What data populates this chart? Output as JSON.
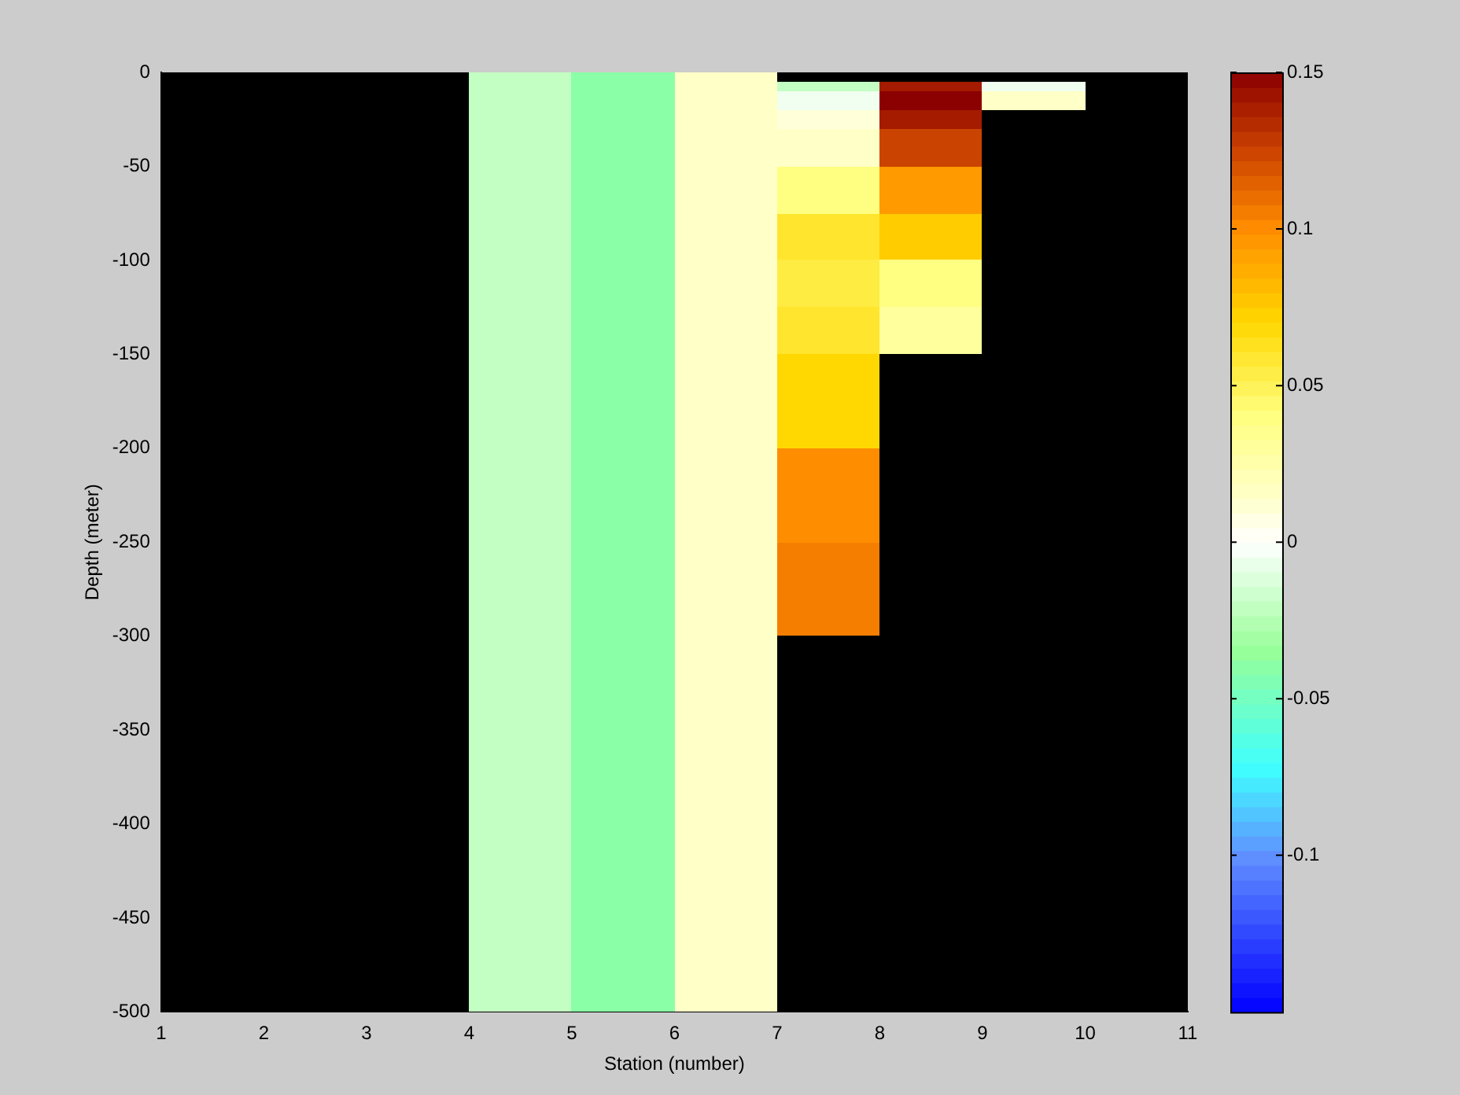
{
  "chart_data": {
    "type": "heatmap",
    "xlabel": "Station (number)",
    "ylabel": "Depth (meter)",
    "x": [
      1.5,
      2.5,
      3.5,
      4.5,
      5.5,
      6.5,
      7.5,
      8.5,
      9.5,
      10.5
    ],
    "y": [
      -2.5,
      -7.5,
      -12.5,
      -17.5,
      -22.5,
      -27.5,
      -32.5,
      -37.5,
      -42.5,
      -47.5,
      -52.5,
      -57.5,
      -62.5,
      -67.5,
      -72.5,
      -77.5,
      -82.5,
      -87.5,
      -92.5,
      -97.5,
      -102.5,
      -107.5,
      -112.5,
      -117.5,
      -122.5,
      -127.5,
      -132.5,
      -137.5,
      -142.5,
      -147.5,
      -152.5,
      -157.5,
      -162.5,
      -167.5,
      -172.5,
      -177.5,
      -182.5,
      -187.5,
      -192.5,
      -197.5,
      -202.5,
      -207.5,
      -212.5,
      -217.5,
      -222.5,
      -227.5,
      -232.5,
      -237.5,
      -242.5,
      -247.5,
      -252.5,
      -257.5,
      -262.5,
      -267.5,
      -272.5,
      -277.5,
      -282.5,
      -287.5,
      -292.5,
      -297.5,
      -302.5,
      -307.5,
      -312.5,
      -317.5,
      -322.5,
      -327.5,
      -332.5,
      -337.5,
      -342.5,
      -347.5,
      -352.5,
      -357.5,
      -362.5,
      -367.5,
      -372.5,
      -377.5,
      -382.5,
      -387.5,
      -392.5,
      -397.5,
      -402.5,
      -407.5,
      -412.5,
      -417.5,
      -422.5,
      -427.5,
      -432.5,
      -437.5,
      -442.5,
      -447.5,
      -452.5,
      -457.5,
      -462.5,
      -467.5,
      -472.5,
      -477.5,
      -482.5,
      -487.5,
      -492.5,
      -497.5
    ],
    "cells": [
      [
        null,
        null,
        null,
        -0.02,
        -0.04,
        0.015,
        null,
        null,
        null,
        null
      ],
      [
        null,
        null,
        null,
        -0.02,
        -0.04,
        0.015,
        -0.02,
        0.14,
        -0.005,
        null
      ],
      [
        null,
        null,
        null,
        -0.02,
        -0.04,
        0.015,
        -0.005,
        0.15,
        0.015,
        null
      ],
      [
        null,
        null,
        null,
        -0.02,
        -0.04,
        0.015,
        -0.005,
        0.15,
        0.015,
        null
      ],
      [
        null,
        null,
        null,
        -0.02,
        -0.04,
        0.015,
        0.01,
        0.14,
        null,
        null
      ],
      [
        null,
        null,
        null,
        -0.02,
        -0.04,
        0.015,
        0.01,
        0.14,
        null,
        null
      ],
      [
        null,
        null,
        null,
        -0.02,
        -0.04,
        0.015,
        0.015,
        0.125,
        null,
        null
      ],
      [
        null,
        null,
        null,
        -0.02,
        -0.04,
        0.015,
        0.015,
        0.125,
        null,
        null
      ],
      [
        null,
        null,
        null,
        -0.02,
        -0.04,
        0.015,
        0.015,
        0.125,
        null,
        null
      ],
      [
        null,
        null,
        null,
        -0.02,
        -0.04,
        0.015,
        0.015,
        0.125,
        null,
        null
      ],
      [
        null,
        null,
        null,
        -0.02,
        -0.04,
        0.015,
        0.04,
        0.095,
        null,
        null
      ],
      [
        null,
        null,
        null,
        -0.02,
        -0.04,
        0.015,
        0.04,
        0.095,
        null,
        null
      ],
      [
        null,
        null,
        null,
        -0.02,
        -0.04,
        0.015,
        0.04,
        0.095,
        null,
        null
      ],
      [
        null,
        null,
        null,
        -0.02,
        -0.04,
        0.015,
        0.04,
        0.095,
        null,
        null
      ],
      [
        null,
        null,
        null,
        -0.02,
        -0.04,
        0.015,
        0.04,
        0.095,
        null,
        null
      ],
      [
        null,
        null,
        null,
        -0.02,
        -0.04,
        0.015,
        0.06,
        0.075,
        null,
        null
      ],
      [
        null,
        null,
        null,
        -0.02,
        -0.04,
        0.015,
        0.06,
        0.075,
        null,
        null
      ],
      [
        null,
        null,
        null,
        -0.02,
        -0.04,
        0.015,
        0.06,
        0.075,
        null,
        null
      ],
      [
        null,
        null,
        null,
        -0.02,
        -0.04,
        0.015,
        0.06,
        0.075,
        null,
        null
      ],
      [
        null,
        null,
        null,
        -0.02,
        -0.04,
        0.015,
        0.06,
        0.075,
        null,
        null
      ],
      [
        null,
        null,
        null,
        -0.02,
        -0.04,
        0.015,
        0.055,
        0.04,
        null,
        null
      ],
      [
        null,
        null,
        null,
        -0.02,
        -0.04,
        0.015,
        0.055,
        0.04,
        null,
        null
      ],
      [
        null,
        null,
        null,
        -0.02,
        -0.04,
        0.015,
        0.055,
        0.04,
        null,
        null
      ],
      [
        null,
        null,
        null,
        -0.02,
        -0.04,
        0.015,
        0.055,
        0.04,
        null,
        null
      ],
      [
        null,
        null,
        null,
        -0.02,
        -0.04,
        0.015,
        0.055,
        0.04,
        null,
        null
      ],
      [
        null,
        null,
        null,
        -0.02,
        -0.04,
        0.015,
        0.06,
        0.03,
        null,
        null
      ],
      [
        null,
        null,
        null,
        -0.02,
        -0.04,
        0.015,
        0.06,
        0.03,
        null,
        null
      ],
      [
        null,
        null,
        null,
        -0.02,
        -0.04,
        0.015,
        0.06,
        0.03,
        null,
        null
      ],
      [
        null,
        null,
        null,
        -0.02,
        -0.04,
        0.015,
        0.06,
        0.03,
        null,
        null
      ],
      [
        null,
        null,
        null,
        -0.02,
        -0.04,
        0.015,
        0.06,
        0.03,
        null,
        null
      ],
      [
        null,
        null,
        null,
        -0.02,
        -0.04,
        0.015,
        0.07,
        null,
        null,
        null
      ],
      [
        null,
        null,
        null,
        -0.02,
        -0.04,
        0.015,
        0.07,
        null,
        null,
        null
      ],
      [
        null,
        null,
        null,
        -0.02,
        -0.04,
        0.015,
        0.07,
        null,
        null,
        null
      ],
      [
        null,
        null,
        null,
        -0.02,
        -0.04,
        0.015,
        0.07,
        null,
        null,
        null
      ],
      [
        null,
        null,
        null,
        -0.02,
        -0.04,
        0.015,
        0.07,
        null,
        null,
        null
      ],
      [
        null,
        null,
        null,
        -0.02,
        -0.04,
        0.015,
        0.07,
        null,
        null,
        null
      ],
      [
        null,
        null,
        null,
        -0.02,
        -0.04,
        0.015,
        0.07,
        null,
        null,
        null
      ],
      [
        null,
        null,
        null,
        -0.02,
        -0.04,
        0.015,
        0.07,
        null,
        null,
        null
      ],
      [
        null,
        null,
        null,
        -0.02,
        -0.04,
        0.015,
        0.07,
        null,
        null,
        null
      ],
      [
        null,
        null,
        null,
        -0.02,
        -0.04,
        0.015,
        0.07,
        null,
        null,
        null
      ],
      [
        null,
        null,
        null,
        -0.02,
        -0.04,
        0.015,
        0.1,
        null,
        null,
        null
      ],
      [
        null,
        null,
        null,
        -0.02,
        -0.04,
        0.015,
        0.1,
        null,
        null,
        null
      ],
      [
        null,
        null,
        null,
        -0.02,
        -0.04,
        0.015,
        0.1,
        null,
        null,
        null
      ],
      [
        null,
        null,
        null,
        -0.02,
        -0.04,
        0.015,
        0.1,
        null,
        null,
        null
      ],
      [
        null,
        null,
        null,
        -0.02,
        -0.04,
        0.015,
        0.1,
        null,
        null,
        null
      ],
      [
        null,
        null,
        null,
        -0.02,
        -0.04,
        0.015,
        0.1,
        null,
        null,
        null
      ],
      [
        null,
        null,
        null,
        -0.02,
        -0.04,
        0.015,
        0.1,
        null,
        null,
        null
      ],
      [
        null,
        null,
        null,
        -0.02,
        -0.04,
        0.015,
        0.1,
        null,
        null,
        null
      ],
      [
        null,
        null,
        null,
        -0.02,
        -0.04,
        0.015,
        0.1,
        null,
        null,
        null
      ],
      [
        null,
        null,
        null,
        -0.02,
        -0.04,
        0.015,
        0.1,
        null,
        null,
        null
      ],
      [
        null,
        null,
        null,
        -0.02,
        -0.04,
        0.015,
        0.105,
        null,
        null,
        null
      ],
      [
        null,
        null,
        null,
        -0.02,
        -0.04,
        0.015,
        0.105,
        null,
        null,
        null
      ],
      [
        null,
        null,
        null,
        -0.02,
        -0.04,
        0.015,
        0.105,
        null,
        null,
        null
      ],
      [
        null,
        null,
        null,
        -0.02,
        -0.04,
        0.015,
        0.105,
        null,
        null,
        null
      ],
      [
        null,
        null,
        null,
        -0.02,
        -0.04,
        0.015,
        0.105,
        null,
        null,
        null
      ],
      [
        null,
        null,
        null,
        -0.02,
        -0.04,
        0.015,
        0.105,
        null,
        null,
        null
      ],
      [
        null,
        null,
        null,
        -0.02,
        -0.04,
        0.015,
        0.105,
        null,
        null,
        null
      ],
      [
        null,
        null,
        null,
        -0.02,
        -0.04,
        0.015,
        0.105,
        null,
        null,
        null
      ],
      [
        null,
        null,
        null,
        -0.02,
        -0.04,
        0.015,
        0.105,
        null,
        null,
        null
      ],
      [
        null,
        null,
        null,
        -0.02,
        -0.04,
        0.015,
        0.105,
        null,
        null,
        null
      ],
      [
        null,
        null,
        null,
        -0.02,
        -0.04,
        0.015,
        null,
        null,
        null,
        null
      ],
      [
        null,
        null,
        null,
        -0.02,
        -0.04,
        0.015,
        null,
        null,
        null,
        null
      ],
      [
        null,
        null,
        null,
        -0.02,
        -0.04,
        0.015,
        null,
        null,
        null,
        null
      ],
      [
        null,
        null,
        null,
        -0.02,
        -0.04,
        0.015,
        null,
        null,
        null,
        null
      ],
      [
        null,
        null,
        null,
        -0.02,
        -0.04,
        0.015,
        null,
        null,
        null,
        null
      ],
      [
        null,
        null,
        null,
        -0.02,
        -0.04,
        0.015,
        null,
        null,
        null,
        null
      ],
      [
        null,
        null,
        null,
        -0.02,
        -0.04,
        0.015,
        null,
        null,
        null,
        null
      ],
      [
        null,
        null,
        null,
        -0.02,
        -0.04,
        0.015,
        null,
        null,
        null,
        null
      ],
      [
        null,
        null,
        null,
        -0.02,
        -0.04,
        0.015,
        null,
        null,
        null,
        null
      ],
      [
        null,
        null,
        null,
        -0.02,
        -0.04,
        0.015,
        null,
        null,
        null,
        null
      ],
      [
        null,
        null,
        null,
        -0.02,
        -0.04,
        0.015,
        null,
        null,
        null,
        null
      ],
      [
        null,
        null,
        null,
        -0.02,
        -0.04,
        0.015,
        null,
        null,
        null,
        null
      ],
      [
        null,
        null,
        null,
        -0.02,
        -0.04,
        0.015,
        null,
        null,
        null,
        null
      ],
      [
        null,
        null,
        null,
        -0.02,
        -0.04,
        0.015,
        null,
        null,
        null,
        null
      ],
      [
        null,
        null,
        null,
        -0.02,
        -0.04,
        0.015,
        null,
        null,
        null,
        null
      ],
      [
        null,
        null,
        null,
        -0.02,
        -0.04,
        0.015,
        null,
        null,
        null,
        null
      ],
      [
        null,
        null,
        null,
        -0.02,
        -0.04,
        0.015,
        null,
        null,
        null,
        null
      ],
      [
        null,
        null,
        null,
        -0.02,
        -0.04,
        0.015,
        null,
        null,
        null,
        null
      ],
      [
        null,
        null,
        null,
        -0.02,
        -0.04,
        0.015,
        null,
        null,
        null,
        null
      ],
      [
        null,
        null,
        null,
        -0.02,
        -0.04,
        0.015,
        null,
        null,
        null,
        null
      ],
      [
        null,
        null,
        null,
        -0.02,
        -0.04,
        0.015,
        null,
        null,
        null,
        null
      ],
      [
        null,
        null,
        null,
        -0.02,
        -0.04,
        0.015,
        null,
        null,
        null,
        null
      ],
      [
        null,
        null,
        null,
        -0.02,
        -0.04,
        0.015,
        null,
        null,
        null,
        null
      ],
      [
        null,
        null,
        null,
        -0.02,
        -0.04,
        0.015,
        null,
        null,
        null,
        null
      ],
      [
        null,
        null,
        null,
        -0.02,
        -0.04,
        0.015,
        null,
        null,
        null,
        null
      ],
      [
        null,
        null,
        null,
        -0.02,
        -0.04,
        0.015,
        null,
        null,
        null,
        null
      ],
      [
        null,
        null,
        null,
        -0.02,
        -0.04,
        0.015,
        null,
        null,
        null,
        null
      ],
      [
        null,
        null,
        null,
        -0.02,
        -0.04,
        0.015,
        null,
        null,
        null,
        null
      ],
      [
        null,
        null,
        null,
        -0.02,
        -0.04,
        0.015,
        null,
        null,
        null,
        null
      ],
      [
        null,
        null,
        null,
        -0.02,
        -0.04,
        0.015,
        null,
        null,
        null,
        null
      ],
      [
        null,
        null,
        null,
        -0.02,
        -0.04,
        0.015,
        null,
        null,
        null,
        null
      ],
      [
        null,
        null,
        null,
        -0.02,
        -0.04,
        0.015,
        null,
        null,
        null,
        null
      ],
      [
        null,
        null,
        null,
        -0.02,
        -0.04,
        0.015,
        null,
        null,
        null,
        null
      ],
      [
        null,
        null,
        null,
        -0.02,
        -0.04,
        0.015,
        null,
        null,
        null,
        null
      ],
      [
        null,
        null,
        null,
        -0.02,
        -0.04,
        0.015,
        null,
        null,
        null,
        null
      ],
      [
        null,
        null,
        null,
        -0.02,
        -0.04,
        0.015,
        null,
        null,
        null,
        null
      ],
      [
        null,
        null,
        null,
        -0.02,
        -0.04,
        0.015,
        null,
        null,
        null,
        null
      ],
      [
        null,
        null,
        null,
        -0.02,
        -0.04,
        0.015,
        null,
        null,
        null,
        null
      ],
      [
        null,
        null,
        null,
        -0.02,
        -0.04,
        0.015,
        null,
        null,
        null,
        null
      ],
      [
        null,
        null,
        null,
        -0.02,
        -0.04,
        0.015,
        null,
        null,
        null,
        null
      ]
    ],
    "xlim": [
      1,
      11
    ],
    "xticks": [
      1,
      2,
      3,
      4,
      5,
      6,
      7,
      8,
      9,
      10,
      11
    ],
    "ylim": [
      -500,
      0
    ],
    "yticks": [
      -500,
      -450,
      -400,
      -350,
      -300,
      -250,
      -200,
      -150,
      -100,
      -50,
      0
    ],
    "clim": [
      -0.15,
      0.15
    ],
    "cticks": [
      -0.1,
      -0.05,
      0,
      0.05,
      0.1,
      0.15
    ],
    "grid": false,
    "legend": false
  }
}
